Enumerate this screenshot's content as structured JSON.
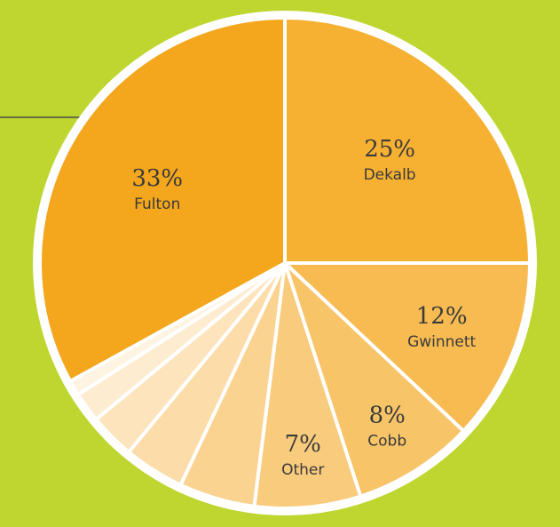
{
  "chart_data": {
    "type": "pie",
    "categories": [
      "Dekalb",
      "Gwinnett",
      "Cobb",
      "Other",
      null,
      null,
      null,
      null,
      null,
      "Fulton"
    ],
    "values": [
      25,
      12,
      8,
      7,
      5,
      4,
      3,
      2,
      1,
      33
    ],
    "value_labels": [
      "25%",
      "12%",
      "8%",
      "7%",
      null,
      null,
      null,
      null,
      null,
      "33%"
    ],
    "colors": [
      "#f6b132",
      "#f7bb52",
      "#f8c468",
      "#f9cb7c",
      "#fbd391",
      "#fcdca8",
      "#fde4bc",
      "#feecd0",
      "#fff3e2",
      "#f4a71d"
    ]
  }
}
